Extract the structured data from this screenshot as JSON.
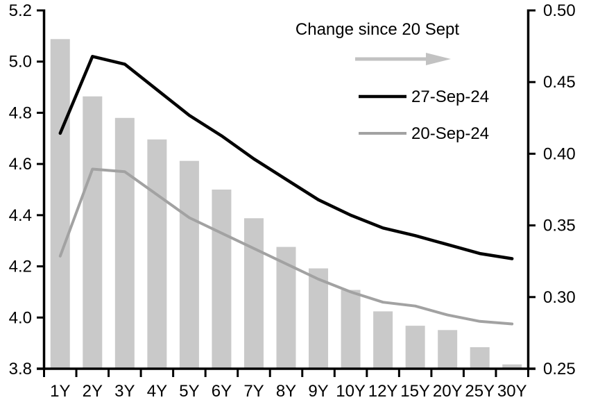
{
  "chart_data": {
    "type": "combo",
    "categories": [
      "1Y",
      "2Y",
      "3Y",
      "4Y",
      "5Y",
      "6Y",
      "7Y",
      "8Y",
      "9Y",
      "10Y",
      "12Y",
      "15Y",
      "20Y",
      "25Y",
      "30Y"
    ],
    "series": [
      {
        "name": "Change since 20 Sept",
        "chart_type": "bar",
        "axis": "right",
        "color": "#c9c9c9",
        "values": [
          0.48,
          0.44,
          0.425,
          0.41,
          0.395,
          0.375,
          0.355,
          0.335,
          0.32,
          0.305,
          0.29,
          0.28,
          0.277,
          0.265,
          0.253
        ]
      },
      {
        "name": "27-Sep-24",
        "chart_type": "line",
        "axis": "left",
        "color": "#000000",
        "values": [
          4.72,
          5.02,
          4.99,
          4.89,
          4.79,
          4.71,
          4.62,
          4.54,
          4.46,
          4.4,
          4.35,
          4.32,
          4.285,
          4.25,
          4.23
        ]
      },
      {
        "name": "20-Sep-24",
        "chart_type": "line",
        "axis": "left",
        "color": "#a2a2a2",
        "values": [
          4.24,
          4.58,
          4.57,
          4.48,
          4.39,
          4.33,
          4.27,
          4.21,
          4.15,
          4.1,
          4.06,
          4.045,
          4.01,
          3.985,
          3.975
        ]
      }
    ],
    "left_axis": {
      "min": 3.8,
      "max": 5.2,
      "tick_step": 0.2,
      "tick_labels": [
        "5.2",
        "5.0",
        "4.8",
        "4.6",
        "4.4",
        "4.2",
        "4.0",
        "3.8"
      ]
    },
    "right_axis": {
      "min": 0.25,
      "max": 0.5,
      "tick_step": 0.05,
      "tick_labels": [
        "0.50",
        "0.45",
        "0.40",
        "0.35",
        "0.30",
        "0.25"
      ]
    },
    "legend": {
      "annotation": "Change since 20 Sept",
      "arrow_color": "#c2c2c2",
      "entries": [
        {
          "label": "27-Sep-24",
          "color": "#000000"
        },
        {
          "label": "20-Sep-24",
          "color": "#a2a2a2"
        }
      ]
    },
    "grid": false,
    "legend_position": "inside-top-right",
    "axis_color": "#000000"
  }
}
